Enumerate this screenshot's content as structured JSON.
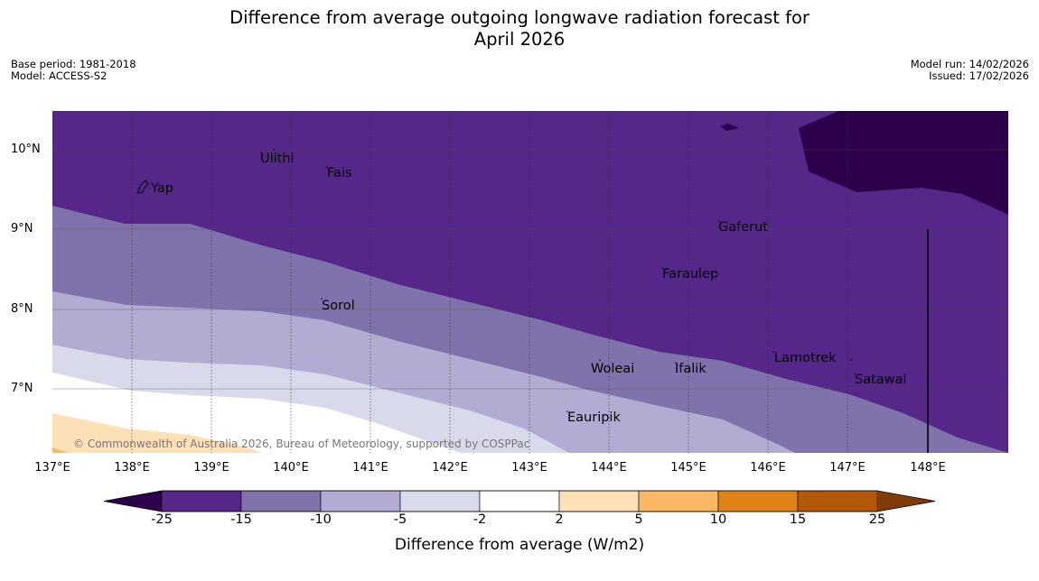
{
  "title": {
    "line1": "Difference from average outgoing longwave radiation forecast for",
    "line2": "April 2026"
  },
  "meta": {
    "base_period": "Base period: 1981-2018",
    "model": "Model: ACCESS-S2",
    "model_run": "Model run: 14/02/2026",
    "issued": "Issued: 17/02/2026"
  },
  "map": {
    "lat_labels": [
      "10°N",
      "9°N",
      "8°N",
      "7°N"
    ],
    "lon_labels": [
      "137°E",
      "138°E",
      "139°E",
      "140°E",
      "141°E",
      "142°E",
      "143°E",
      "144°E",
      "145°E",
      "146°E",
      "147°E",
      "148°E"
    ],
    "places": {
      "yap": "Yap",
      "ulithi": "Ulithi",
      "fais": "Fais",
      "gaferut": "Gaferut",
      "faraulep": "Faraulep",
      "sorol": "Sorol",
      "woleai": "Woleai",
      "ifalik": "Ifalik",
      "lamotrek": "Lamotrek",
      "satawal": "Satawal",
      "eauripik": "Eauripik"
    },
    "copyright": "© Commonwealth of Australia 2026, Bureau of Meteorology, supported by COSPPac"
  },
  "colorbar": {
    "ticks": [
      "-25",
      "-15",
      "-10",
      "-5",
      "-2",
      "2",
      "5",
      "10",
      "15",
      "25"
    ],
    "colors": [
      "#2d004b",
      "#542788",
      "#8073ac",
      "#b2abd2",
      "#d8daeb",
      "#ffffff",
      "#fee0b6",
      "#fdb863",
      "#e08214",
      "#b35806",
      "#7f3b08"
    ],
    "label": "Difference from average (W/m2)"
  }
}
